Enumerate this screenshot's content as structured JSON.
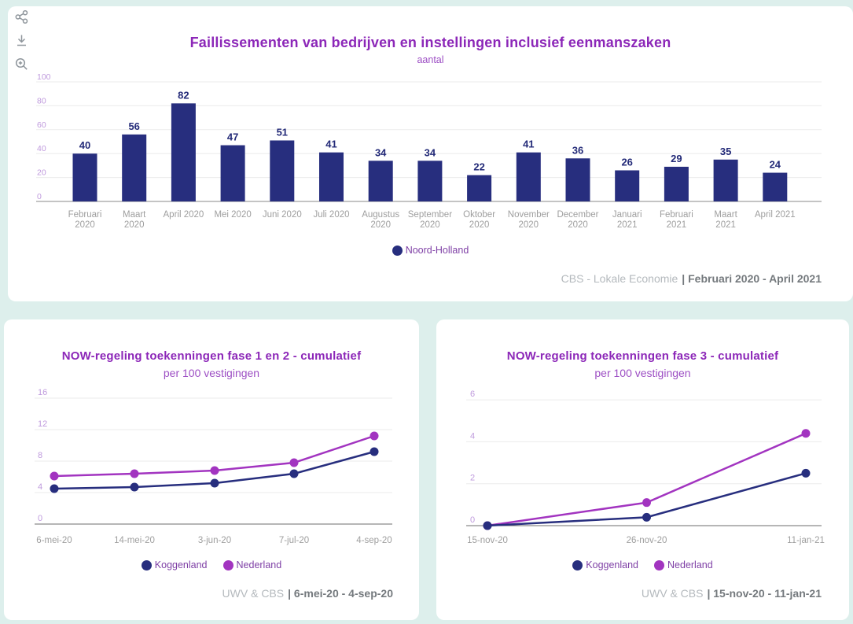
{
  "page": {
    "background_color": "#ddefec",
    "card_color": "#ffffff",
    "accent_navy": "#272e7e",
    "accent_purple": "#a234c0",
    "title_color": "#8c27b8"
  },
  "toolbar": {
    "icons": [
      {
        "name": "share-icon"
      },
      {
        "name": "download-icon"
      },
      {
        "name": "zoom-in-icon"
      }
    ]
  },
  "chart_data": [
    {
      "type": "bar",
      "title": "Faillissementen van bedrijven en instellingen inclusief eenmanszaken",
      "subtitle": "aantal",
      "categories": [
        [
          "Februari",
          "2020"
        ],
        [
          "Maart",
          "2020"
        ],
        [
          "April 2020"
        ],
        [
          "Mei 2020"
        ],
        [
          "Juni 2020"
        ],
        [
          "Juli 2020"
        ],
        [
          "Augustus",
          "2020"
        ],
        [
          "September",
          "2020"
        ],
        [
          "Oktober",
          "2020"
        ],
        [
          "November",
          "2020"
        ],
        [
          "December",
          "2020"
        ],
        [
          "Januari",
          "2021"
        ],
        [
          "Februari",
          "2021"
        ],
        [
          "Maart",
          "2021"
        ],
        [
          "April 2021"
        ]
      ],
      "values": [
        40,
        56,
        82,
        47,
        51,
        41,
        34,
        34,
        22,
        41,
        36,
        26,
        29,
        35,
        24
      ],
      "ylim": [
        0,
        100
      ],
      "yticks": [
        0,
        20,
        40,
        60,
        80,
        100
      ],
      "grid": true,
      "bar_color": "#272e7e",
      "value_label_color": "#232a78",
      "legend": [
        {
          "label": "Noord-Holland",
          "color": "#272e7e"
        }
      ],
      "legend_position": "bottom-center",
      "footer_source": "CBS - Lokale Economie",
      "footer_range": "| Februari 2020 - April 2021"
    },
    {
      "type": "line",
      "title": "NOW-regeling toekenningen fase 1 en 2 - cumulatief",
      "subtitle": "per 100 vestigingen",
      "x": [
        "6-mei-20",
        "14-mei-20",
        "3-jun-20",
        "7-jul-20",
        "4-sep-20"
      ],
      "series": [
        {
          "name": "Koggenland",
          "color": "#272e7e",
          "values": [
            4.5,
            4.7,
            5.2,
            6.4,
            9.2
          ]
        },
        {
          "name": "Nederland",
          "color": "#a234c0",
          "values": [
            6.1,
            6.4,
            6.8,
            7.8,
            11.2
          ]
        }
      ],
      "ylim": [
        0,
        16
      ],
      "yticks": [
        0,
        4,
        8,
        12,
        16
      ],
      "grid": true,
      "legend_position": "bottom-center",
      "footer_source": "UWV & CBS",
      "footer_range": "| 6-mei-20 - 4-sep-20"
    },
    {
      "type": "line",
      "title": "NOW-regeling toekenningen fase 3 - cumulatief",
      "subtitle": "per 100 vestigingen",
      "x": [
        "15-nov-20",
        "26-nov-20",
        "11-jan-21"
      ],
      "series": [
        {
          "name": "Koggenland",
          "color": "#272e7e",
          "values": [
            0,
            0.4,
            2.5
          ]
        },
        {
          "name": "Nederland",
          "color": "#a234c0",
          "values": [
            0,
            1.1,
            4.4
          ]
        }
      ],
      "ylim": [
        0,
        6
      ],
      "yticks": [
        0,
        2,
        4,
        6
      ],
      "grid": true,
      "legend_position": "bottom-center",
      "footer_source": "UWV & CBS",
      "footer_range": "| 15-nov-20 - 11-jan-21"
    }
  ]
}
